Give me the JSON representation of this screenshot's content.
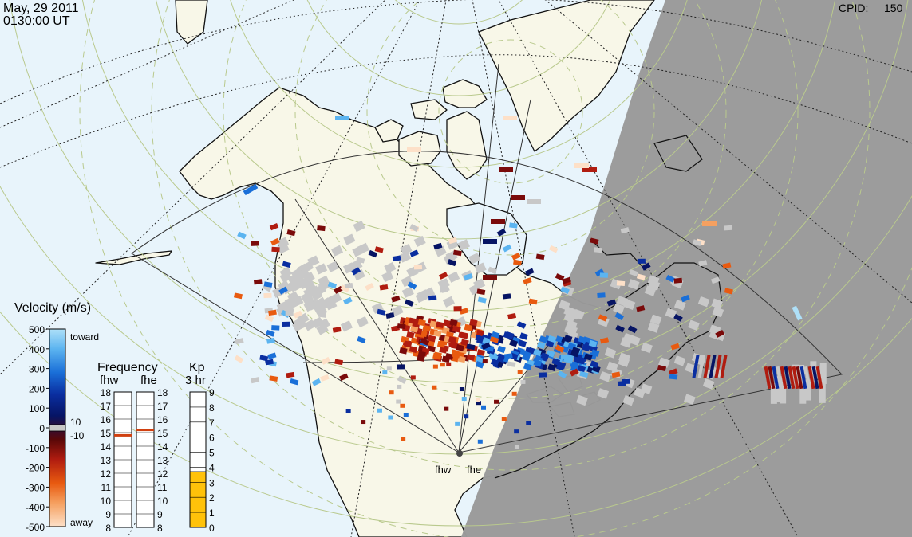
{
  "header": {
    "date": "May, 29 2011",
    "time": "0130:00 UT",
    "cpid_label": "CPID:",
    "cpid_value": "150"
  },
  "colors": {
    "ocean": "#e8f4fb",
    "land": "#f8f7e8",
    "night": "#9a9a9a",
    "ground_scatter": "#c8c8c8"
  },
  "velocity_scale": {
    "title": "Velocity (m/s)",
    "ticks": [
      "500",
      "400",
      "300",
      "200",
      "100",
      "0",
      "-100",
      "-200",
      "-300",
      "-400",
      "-500"
    ],
    "toward_label": "toward",
    "away_label": "away",
    "gs_upper": "10",
    "gs_lower": "-10"
  },
  "frequency_panel": {
    "title": "Frequency",
    "radar_left": "fhw",
    "radar_right": "fhe",
    "ticks": [
      "18",
      "17",
      "16",
      "15",
      "14",
      "13",
      "12",
      "11",
      "10",
      "9",
      "8"
    ],
    "fhw_value_mhz": 14.8,
    "fhe_value_mhz": 15.2
  },
  "kp_panel": {
    "title": "Kp",
    "subtitle": "3 hr",
    "ticks": [
      "9",
      "8",
      "7",
      "6",
      "5",
      "4",
      "3",
      "2",
      "1",
      "0"
    ],
    "kp_value": 3.7
  },
  "radar_labels": {
    "west": "fhw",
    "east": "fhe"
  }
}
